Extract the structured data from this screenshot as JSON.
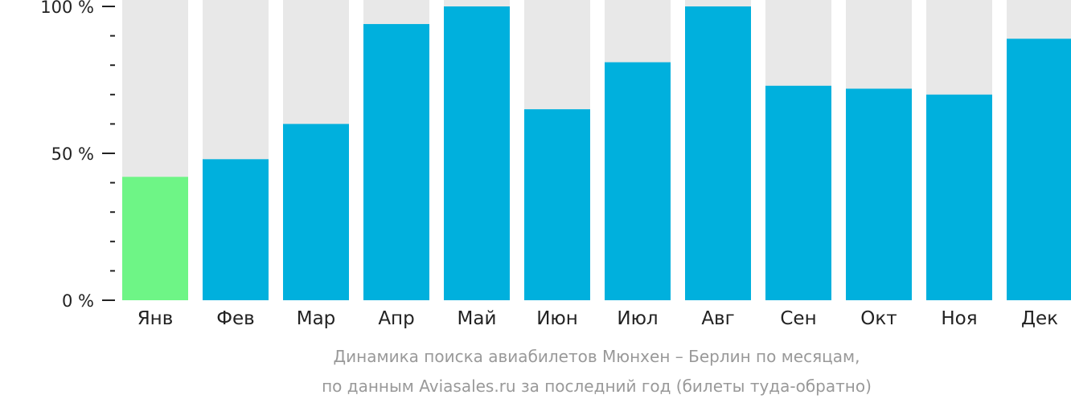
{
  "chart_data": {
    "type": "bar",
    "title": "",
    "xlabel": "",
    "ylabel": "",
    "ylim": [
      0,
      100
    ],
    "yticks": [
      {
        "value": 0,
        "label": "0 %"
      },
      {
        "value": 50,
        "label": "50 %"
      },
      {
        "value": 100,
        "label": "100 %"
      }
    ],
    "minor_ticks": [
      10,
      20,
      30,
      40,
      60,
      70,
      80,
      90
    ],
    "categories": [
      "Янв",
      "Фев",
      "Мар",
      "Апр",
      "Май",
      "Июн",
      "Июл",
      "Авг",
      "Сен",
      "Окт",
      "Ноя",
      "Дек"
    ],
    "values": [
      42,
      48,
      60,
      94,
      100,
      65,
      81,
      100,
      73,
      72,
      70,
      89
    ],
    "highlight_index": 0,
    "colors": {
      "bar": "#00b0dd",
      "highlight": "#6ef586",
      "background_bar": "#e8e8e8",
      "axis": "#222222"
    },
    "grid": false,
    "legend": "none",
    "caption": [
      "Динамика поиска авиабилетов Мюнхен – Берлин по месяцам,",
      "по данным Aviasales.ru за последний год (билеты туда-обратно)"
    ]
  }
}
